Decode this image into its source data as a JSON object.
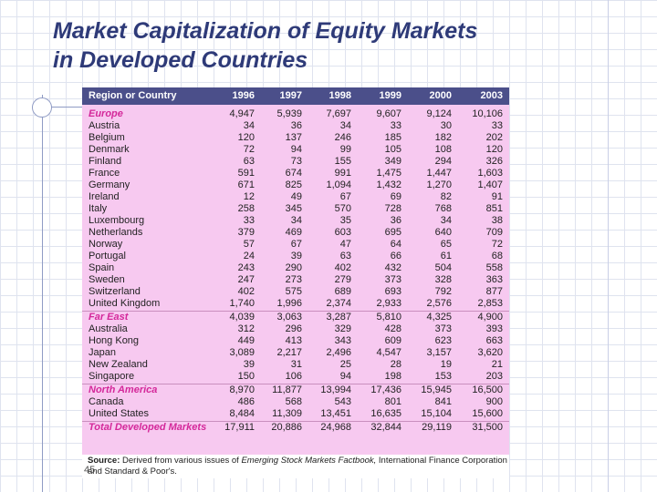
{
  "title_line1": "Market Capitalization of Equity Markets",
  "title_line2": "in Developed Countries",
  "table": {
    "headers": [
      "Region or Country",
      "1996",
      "1997",
      "1998",
      "1999",
      "2000",
      "2003"
    ],
    "rows": [
      {
        "name": "Europe",
        "kind": "region",
        "values": [
          "4,947",
          "5,939",
          "7,697",
          "9,607",
          "9,124",
          "10,106"
        ]
      },
      {
        "name": "Austria",
        "kind": "country",
        "values": [
          "34",
          "36",
          "34",
          "33",
          "30",
          "33"
        ]
      },
      {
        "name": "Belgium",
        "kind": "country",
        "values": [
          "120",
          "137",
          "246",
          "185",
          "182",
          "202"
        ]
      },
      {
        "name": "Denmark",
        "kind": "country",
        "values": [
          "72",
          "94",
          "99",
          "105",
          "108",
          "120"
        ]
      },
      {
        "name": "Finland",
        "kind": "country",
        "values": [
          "63",
          "73",
          "155",
          "349",
          "294",
          "326"
        ]
      },
      {
        "name": "France",
        "kind": "country",
        "values": [
          "591",
          "674",
          "991",
          "1,475",
          "1,447",
          "1,603"
        ]
      },
      {
        "name": "Germany",
        "kind": "country",
        "values": [
          "671",
          "825",
          "1,094",
          "1,432",
          "1,270",
          "1,407"
        ]
      },
      {
        "name": "Ireland",
        "kind": "country",
        "values": [
          "12",
          "49",
          "67",
          "69",
          "82",
          "91"
        ]
      },
      {
        "name": "Italy",
        "kind": "country",
        "values": [
          "258",
          "345",
          "570",
          "728",
          "768",
          "851"
        ]
      },
      {
        "name": "Luxembourg",
        "kind": "country",
        "values": [
          "33",
          "34",
          "35",
          "36",
          "34",
          "38"
        ]
      },
      {
        "name": "Netherlands",
        "kind": "country",
        "values": [
          "379",
          "469",
          "603",
          "695",
          "640",
          "709"
        ]
      },
      {
        "name": "Norway",
        "kind": "country",
        "values": [
          "57",
          "67",
          "47",
          "64",
          "65",
          "72"
        ]
      },
      {
        "name": "Portugal",
        "kind": "country",
        "values": [
          "24",
          "39",
          "63",
          "66",
          "61",
          "68"
        ]
      },
      {
        "name": "Spain",
        "kind": "country",
        "values": [
          "243",
          "290",
          "402",
          "432",
          "504",
          "558"
        ]
      },
      {
        "name": "Sweden",
        "kind": "country",
        "values": [
          "247",
          "273",
          "279",
          "373",
          "328",
          "363"
        ]
      },
      {
        "name": "Switzerland",
        "kind": "country",
        "values": [
          "402",
          "575",
          "689",
          "693",
          "792",
          "877"
        ]
      },
      {
        "name": "United Kingdom",
        "kind": "country",
        "values": [
          "1,740",
          "1,996",
          "2,374",
          "2,933",
          "2,576",
          "2,853"
        ]
      },
      {
        "name": "Far East",
        "kind": "region",
        "values": [
          "4,039",
          "3,063",
          "3,287",
          "5,810",
          "4,325",
          "4,900"
        ]
      },
      {
        "name": "Australia",
        "kind": "country",
        "values": [
          "312",
          "296",
          "329",
          "428",
          "373",
          "393"
        ]
      },
      {
        "name": "Hong Kong",
        "kind": "country",
        "values": [
          "449",
          "413",
          "343",
          "609",
          "623",
          "663"
        ]
      },
      {
        "name": "Japan",
        "kind": "country",
        "values": [
          "3,089",
          "2,217",
          "2,496",
          "4,547",
          "3,157",
          "3,620"
        ]
      },
      {
        "name": "New Zealand",
        "kind": "country",
        "values": [
          "39",
          "31",
          "25",
          "28",
          "19",
          "21"
        ]
      },
      {
        "name": "Singapore",
        "kind": "country",
        "values": [
          "150",
          "106",
          "94",
          "198",
          "153",
          "203"
        ]
      },
      {
        "name": "North America",
        "kind": "region",
        "values": [
          "8,970",
          "11,877",
          "13,994",
          "17,436",
          "15,945",
          "16,500"
        ]
      },
      {
        "name": "Canada",
        "kind": "country",
        "values": [
          "486",
          "568",
          "543",
          "801",
          "841",
          "900"
        ]
      },
      {
        "name": "United States",
        "kind": "country",
        "values": [
          "8,484",
          "11,309",
          "13,451",
          "16,635",
          "15,104",
          "15,600"
        ]
      },
      {
        "name": "Total Developed Markets",
        "kind": "total",
        "values": [
          "17,911",
          "20,886",
          "24,968",
          "32,844",
          "29,119",
          "31,500"
        ]
      }
    ]
  },
  "source": {
    "label": "Source:",
    "text_a": "Derived from various issues of",
    "text_b_italic": "Emerging Stock Markets Factbook,",
    "text_c": "International Finance Corporation and",
    "text_d": "Standard & Poor's."
  },
  "page_number": "45"
}
